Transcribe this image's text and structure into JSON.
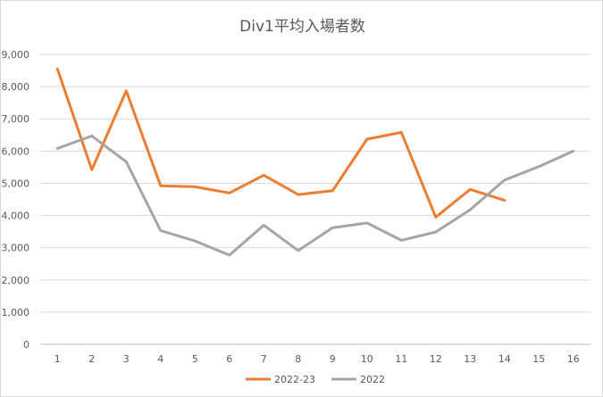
{
  "chart_data": {
    "type": "line",
    "title": "Div1平均入場者数",
    "xlabel": "",
    "ylabel": "",
    "x": [
      1,
      2,
      3,
      4,
      5,
      6,
      7,
      8,
      9,
      10,
      11,
      12,
      13,
      14,
      15,
      16
    ],
    "ylim": [
      0,
      9000
    ],
    "yticks": [
      0,
      1000,
      2000,
      3000,
      4000,
      5000,
      6000,
      7000,
      8000,
      9000
    ],
    "ytick_labels": [
      "0",
      "1,000",
      "2,000",
      "3,000",
      "4,000",
      "5,000",
      "6,000",
      "7,000",
      "8,000",
      "9,000"
    ],
    "grid": true,
    "legend_position": "bottom",
    "series": [
      {
        "name": "2022-23",
        "color": "#ED7D31",
        "values": [
          8550,
          5420,
          7870,
          4920,
          4890,
          4700,
          5250,
          4650,
          4770,
          6370,
          6580,
          3950,
          4810,
          4470,
          null,
          null
        ]
      },
      {
        "name": "2022",
        "color": "#A5A5A5",
        "values": [
          6080,
          6470,
          5670,
          3530,
          3210,
          2770,
          3700,
          2910,
          3620,
          3770,
          3230,
          3490,
          4180,
          5100,
          5520,
          6000
        ]
      }
    ]
  }
}
